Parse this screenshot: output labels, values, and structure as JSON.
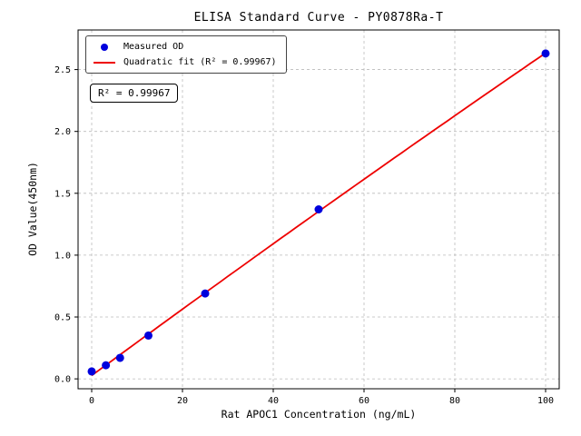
{
  "chart_data": {
    "type": "scatter",
    "title": "ELISA Standard Curve - PY0878Ra-T",
    "xlabel": "Rat APOC1 Concentration (ng/mL)",
    "ylabel": "OD Value(450nm)",
    "annotation": "R² = 0.99967",
    "xlim": [
      -3,
      103
    ],
    "ylim": [
      -0.08,
      2.82
    ],
    "xticks": [
      0,
      20,
      40,
      60,
      80,
      100
    ],
    "xtick_labels": [
      "0",
      "20",
      "40",
      "60",
      "80",
      "100"
    ],
    "yticks": [
      0.0,
      0.5,
      1.0,
      1.5,
      2.0,
      2.5
    ],
    "ytick_labels": [
      "0.0",
      "0.5",
      "1.0",
      "1.5",
      "2.0",
      "2.5"
    ],
    "grid": true,
    "grid_style": "dashed",
    "grid_color": "#bbbbbb",
    "legend_position": "upper-left",
    "series": [
      {
        "name": "Measured OD",
        "type": "scatter",
        "color": "#0000dd",
        "x": [
          0,
          3.125,
          6.25,
          12.5,
          25,
          50,
          100
        ],
        "y": [
          0.06,
          0.11,
          0.17,
          0.35,
          0.69,
          1.37,
          2.63
        ]
      },
      {
        "name": "Quadratic fit (R² = 0.99967)",
        "type": "line",
        "fit": "quadratic",
        "color": "#ee0000"
      }
    ]
  }
}
